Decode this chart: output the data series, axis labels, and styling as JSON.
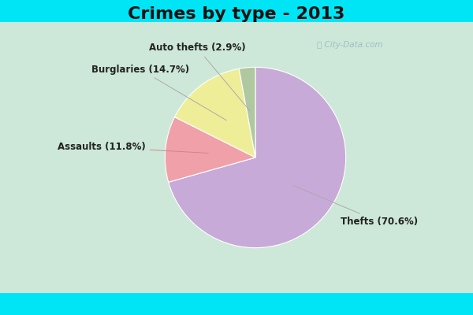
{
  "title": "Crimes by type - 2013",
  "slices": [
    {
      "label": "Thefts",
      "pct": 70.6,
      "color": "#c8aad8"
    },
    {
      "label": "Assaults",
      "pct": 11.8,
      "color": "#f0a0a8"
    },
    {
      "label": "Burglaries",
      "pct": 14.7,
      "color": "#eeee99"
    },
    {
      "label": "Auto thefts",
      "pct": 2.9,
      "color": "#b0c8a0"
    }
  ],
  "bg_color_cyan": "#00e5f5",
  "bg_color_main": "#cde8d8",
  "title_fontsize": 16,
  "label_fontsize": 8.5,
  "watermark": "ⓘ City-Data.com",
  "start_angle": 90
}
